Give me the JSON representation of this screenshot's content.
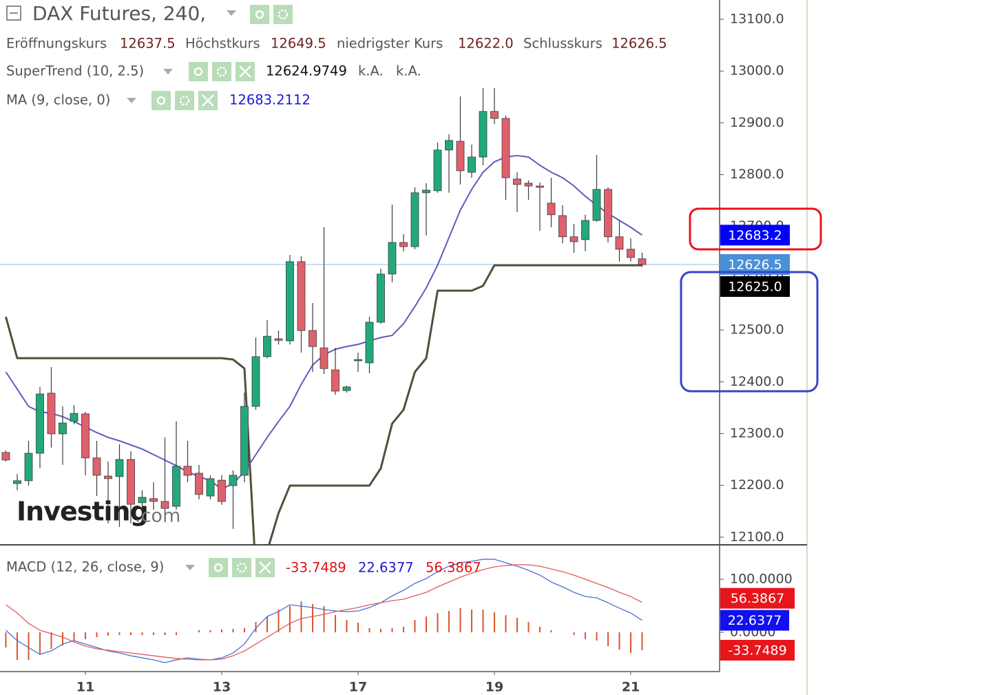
{
  "chart_data": {
    "type": "candlestick",
    "title": "DAX Futures, 240,",
    "ohlc_labels": [
      "Eröffnungskurs",
      "Höchstkurs",
      "niedrigster Kurs",
      "Schlusskurs"
    ],
    "candles": {
      "open": [
        12263.5,
        12203.5,
        12209,
        12262,
        12378,
        12299.5,
        12323.5,
        12338,
        12253,
        12218,
        12217,
        12250,
        12166.5,
        12174.5,
        12169,
        12159.5,
        12237,
        12223.5,
        12179.5,
        12210,
        12199.5,
        12219.5,
        12352.5,
        12448.5,
        12483,
        12479,
        12632,
        12499,
        12465.5,
        12423,
        12383,
        12440.5,
        12436.5,
        12515,
        12608,
        12669,
        12661,
        12765,
        12769,
        12847.5,
        12864.5,
        12804.5,
        12834,
        12922,
        12908.5,
        12791.5,
        12783.5,
        12778,
        12745,
        12721,
        12680,
        12674.5,
        12711.5,
        12771.5,
        12680,
        12656,
        12637.5
      ],
      "high": [
        12267.5,
        12222,
        12286,
        12390,
        12428.5,
        12352.5,
        12355,
        12342,
        12286,
        12246,
        12279.5,
        12266,
        12190.5,
        12206,
        12292.5,
        12323.5,
        12286,
        12239.5,
        12219.5,
        12219.5,
        12229,
        12379,
        12485.5,
        12519,
        12499,
        12645,
        12642.5,
        12552,
        12698.5,
        12465.5,
        12392.5,
        12456.5,
        12525.5,
        12618.5,
        12742,
        12685,
        12775.5,
        12783.5,
        12862,
        12878,
        12951,
        12858,
        12967,
        12967,
        12914,
        12804.5,
        12789,
        12785,
        12794,
        12741,
        12705,
        12722.5,
        12838,
        12775.5,
        12711.5,
        12677,
        12649.5
      ],
      "low": [
        12246,
        12190.5,
        12199.5,
        12233,
        12273,
        12239.5,
        12318,
        12219.5,
        12179.5,
        12126.5,
        12120,
        12126.5,
        12153,
        12153,
        12129,
        12153,
        12206,
        12173,
        12173,
        12162.5,
        12116,
        12206,
        12346,
        12445.5,
        12472,
        12472,
        12456.5,
        12419,
        12415,
        12375,
        12379,
        12419,
        12416.5,
        12512,
        12592,
        12652,
        12656,
        12682.5,
        12765,
        12765,
        12781,
        12794,
        12818,
        12898,
        12751.5,
        12727.5,
        12751.5,
        12691.5,
        12698.5,
        12667.5,
        12649,
        12652,
        12709,
        12669,
        12632,
        12632,
        12622
      ],
      "close": [
        12249,
        12209,
        12262,
        12376.5,
        12299.5,
        12320.5,
        12339,
        12253,
        12219.5,
        12213,
        12250,
        12163.5,
        12177,
        12169,
        12155.5,
        12237,
        12219.5,
        12182.5,
        12213,
        12169,
        12219.5,
        12352.5,
        12448.5,
        12488,
        12480,
        12632,
        12499,
        12468,
        12425.5,
        12382,
        12390,
        12443,
        12515,
        12608,
        12669,
        12661,
        12765,
        12770,
        12847.5,
        12866,
        12807.5,
        12834,
        12922,
        12908.5,
        12794,
        12781,
        12778,
        12775.5,
        12722.5,
        12680,
        12670.5,
        12711.5,
        12771.5,
        12680,
        12656,
        12640,
        12626.5
      ],
      "last_labels": [
        "12637.5",
        "12649.5",
        "12622.0",
        "12626.5"
      ],
      "up_color": "#22a97b",
      "down_color": "#e0616d",
      "outline_color": "#3b3b3b",
      "last_color": "#4a90d9",
      "last_line_color": "#a9c9ea"
    },
    "supertrend": {
      "name": "SuperTrend (10, 2.5)",
      "status": [
        "k.A.",
        "k.A."
      ],
      "color": "#50503a",
      "badge_color": "#000000",
      "values": [
        12525.4,
        12445.6,
        12445.6,
        12445.6,
        12445.6,
        12445.6,
        12445.6,
        12445.6,
        12445.6,
        12445.6,
        12445.6,
        12445.6,
        12445.6,
        12445.6,
        12445.6,
        12445.6,
        12445.6,
        12445.6,
        12445.6,
        12445.6,
        12443,
        12425.7,
        12033.3,
        12073.2,
        12146.4,
        12199.6,
        12199.6,
        12199.6,
        12199.6,
        12199.6,
        12199.6,
        12199.6,
        12199.6,
        12232.8,
        12319.3,
        12345.9,
        12419,
        12445.6,
        12576,
        12576,
        12576,
        12576,
        12585.3,
        12625,
        12625,
        12625,
        12625,
        12625,
        12625,
        12625,
        12625,
        12625,
        12625,
        12625,
        12625,
        12625,
        12624.9749
      ],
      "last_label": "12625.0"
    },
    "ma": {
      "name": "MA (9, close, 0)",
      "color": "#5b5bc0",
      "label_color": "#1a1ad0",
      "badge_color": "#0000ff",
      "values": [
        12419,
        12385.8,
        12352.5,
        12341.9,
        12339.2,
        12332.6,
        12323.3,
        12312.6,
        12302,
        12292.7,
        12286,
        12278.1,
        12270.1,
        12259.4,
        12248.8,
        12238.2,
        12226.2,
        12216.9,
        12208.9,
        12192.9,
        12203.6,
        12226.2,
        12259.4,
        12292.7,
        12323.3,
        12352.5,
        12395.1,
        12432.3,
        12452.3,
        12462.9,
        12468.2,
        12472.2,
        12478.9,
        12485.5,
        12489.5,
        12512.1,
        12545.4,
        12581.3,
        12625.2,
        12678.4,
        12731.6,
        12771.5,
        12804.7,
        12824.7,
        12834,
        12836.7,
        12834,
        12818,
        12804.7,
        12794.1,
        12778.1,
        12758.2,
        12740.9,
        12724.9,
        12711.6,
        12698.3,
        12683.2112
      ],
      "last_label": "12683.2"
    },
    "xlim": [
      -0.515,
      62.82
    ],
    "xticks": [
      {
        "value": 7,
        "label": "11"
      },
      {
        "value": 19,
        "label": "13"
      },
      {
        "value": 31,
        "label": "17"
      },
      {
        "value": 43,
        "label": "19"
      },
      {
        "value": 55,
        "label": "21"
      }
    ],
    "ylim": [
      12086.5,
      13137.2
    ],
    "yticks": [
      {
        "value": 12100,
        "label": "12100.0"
      },
      {
        "value": 12200,
        "label": "12200.0"
      },
      {
        "value": 12300,
        "label": "12300.0"
      },
      {
        "value": 12400,
        "label": "12400.0"
      },
      {
        "value": 12500,
        "label": "12500.0"
      },
      {
        "value": 12600,
        "label": "12600.0"
      },
      {
        "value": 12700,
        "label": "12700.0"
      },
      {
        "value": 12800,
        "label": "12800.0"
      },
      {
        "value": 12900,
        "label": "12900.0"
      },
      {
        "value": 13000,
        "label": "13000.0"
      },
      {
        "value": 13100,
        "label": "13100.0"
      }
    ],
    "grid": false,
    "watermark": [
      "Investing",
      ".com"
    ],
    "macd": {
      "name": "MACD (12, 26, close, 9)",
      "ylim": [
        -74,
        163.6
      ],
      "yticks": [
        {
          "value": 100,
          "label": "100.0000"
        },
        {
          "value": 0,
          "label": "0.0000"
        }
      ],
      "series": [
        {
          "style": "histogram",
          "color": "#d9542f",
          "label_color": "#e01010",
          "badge_color": "#e8151b",
          "values": [
            -28.6,
            -51.9,
            -51.9,
            -41.6,
            -31.2,
            -24.7,
            -15.6,
            -13,
            -9.1,
            -6.5,
            -5.2,
            -5.2,
            -5.2,
            -5.2,
            -5.2,
            -5.2,
            0,
            3.9,
            3.9,
            5.2,
            6.5,
            7.8,
            19.5,
            29.9,
            42.9,
            49.4,
            58.4,
            53.2,
            49.4,
            32.5,
            23.4,
            18.2,
            7.8,
            6.5,
            7.8,
            10.4,
            23.4,
            29.9,
            36.4,
            40.3,
            45.5,
            42.9,
            42.9,
            37.7,
            32.5,
            27.3,
            19.5,
            10.4,
            3.9,
            0,
            -5.2,
            -13,
            -15.6,
            -26,
            -32.5,
            -39,
            -33.7489
          ]
        },
        {
          "style": "line",
          "color": "#4a6fd6",
          "label_color": "#1a1ad0",
          "badge_color": "#1010f0",
          "values": [
            3.9,
            -15.6,
            -28.6,
            -41.6,
            -35.1,
            -22.1,
            -15.6,
            -22.1,
            -28.6,
            -35.1,
            -39,
            -44.2,
            -48.1,
            -51.9,
            -57.1,
            -51.9,
            -48.1,
            -50.6,
            -51.9,
            -48.1,
            -39,
            -22.1,
            7.8,
            29.9,
            39,
            51.9,
            49.4,
            46.8,
            42.9,
            40.3,
            39,
            40.3,
            46.8,
            55.8,
            68.8,
            79.2,
            92.2,
            101.3,
            114.3,
            124.7,
            131.2,
            133.8,
            137.7,
            137.7,
            131.2,
            124.7,
            116.9,
            107.8,
            94.8,
            85.7,
            75.3,
            67.5,
            64.9,
            55.8,
            45.5,
            36.4,
            22.6377
          ]
        },
        {
          "style": "line",
          "color": "#e05a5a",
          "label_color": "#e01010",
          "badge_color": "#e8151b",
          "values": [
            51.9,
            36.4,
            16.9,
            3.9,
            -2.6,
            -9.1,
            -18.2,
            -26,
            -31.2,
            -33.8,
            -36.4,
            -39,
            -41.6,
            -44.2,
            -46.8,
            -49.4,
            -50.6,
            -51.9,
            -51.9,
            -50.6,
            -44.2,
            -35.1,
            -22.1,
            -9.1,
            3.9,
            16.9,
            26,
            29.9,
            33.8,
            39,
            42.9,
            46.8,
            51.9,
            55.8,
            59.7,
            62.3,
            68.8,
            75.3,
            85.7,
            94.8,
            103.9,
            111.7,
            118.2,
            123.4,
            126,
            127.3,
            127.3,
            124.7,
            119.5,
            114.3,
            107.8,
            100,
            92.2,
            84.4,
            75.3,
            67.5,
            56.3867
          ]
        }
      ]
    }
  }
}
